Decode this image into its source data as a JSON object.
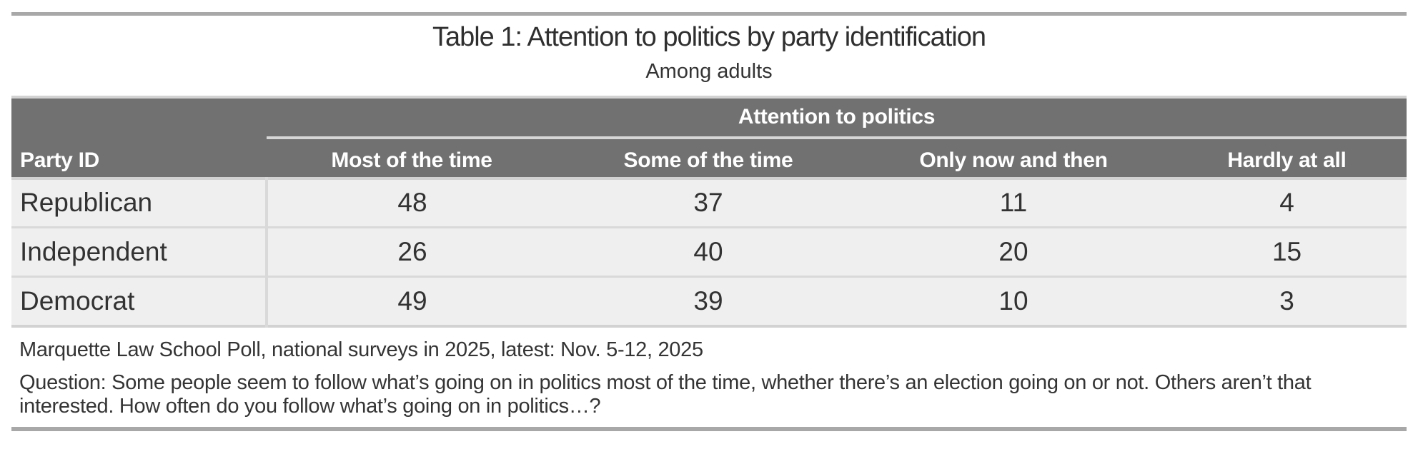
{
  "chart_data": {
    "type": "table",
    "title": "Table 1: Attention to politics by party identification",
    "subtitle": "Among adults",
    "group_header": "Attention to politics",
    "row_header": "Party ID",
    "columns": [
      "Most of the time",
      "Some of the time",
      "Only now and then",
      "Hardly at all"
    ],
    "rows": [
      {
        "label": "Republican",
        "values": [
          48,
          37,
          11,
          4
        ]
      },
      {
        "label": "Independent",
        "values": [
          26,
          40,
          20,
          15
        ]
      },
      {
        "label": "Democrat",
        "values": [
          49,
          39,
          10,
          3
        ]
      }
    ],
    "source": "Marquette Law School Poll, national surveys in 2025, latest: Nov. 5-12, 2025",
    "question": "Question: Some people seem to follow what’s going on in politics most of the time, whether there’s an election going on or not. Others aren’t that interested. How often do you follow what’s going on in politics…?"
  },
  "colors": {
    "header_bg": "#717171",
    "header_text": "#ffffff",
    "row_bg": "#efefef",
    "divider": "#d9d9d9",
    "table_edge": "#d2d2d2",
    "rule": "#a8a8a8",
    "text": "#2f2f2f"
  }
}
